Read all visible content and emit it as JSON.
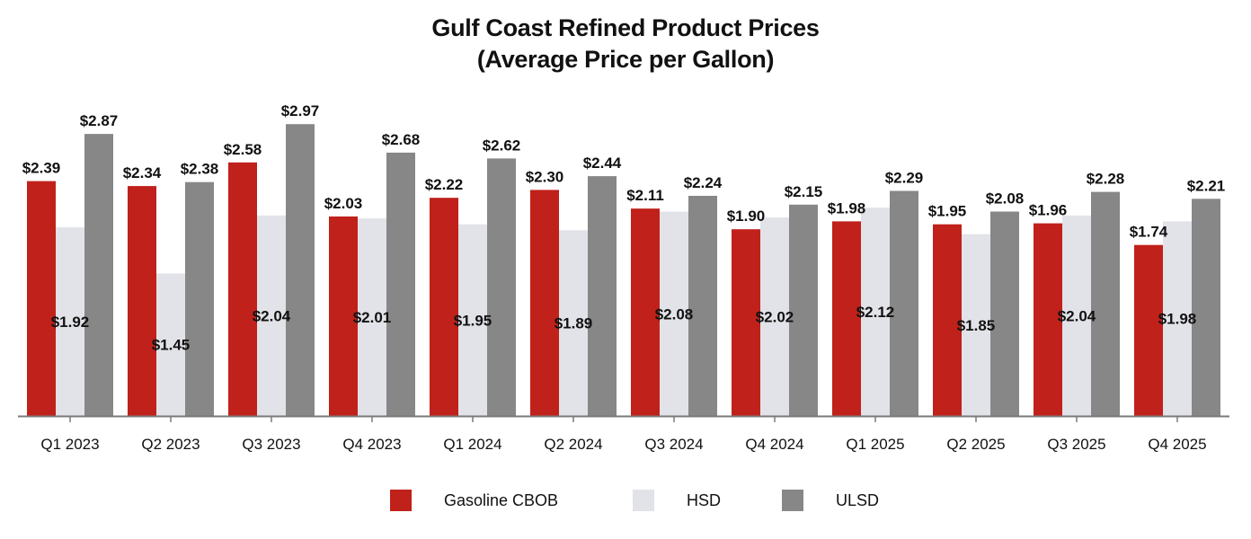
{
  "chart_data": {
    "type": "bar",
    "title": "Gulf Coast Refined Product Prices",
    "subtitle": "(Average Price per Gallon)",
    "xlabel": "",
    "ylabel": "",
    "ylim": [
      0,
      3.2
    ],
    "grid": false,
    "legend_position": "bottom-center",
    "categories": [
      "Q1 2023",
      "Q2 2023",
      "Q3 2023",
      "Q4 2023",
      "Q1 2024",
      "Q2 2024",
      "Q3 2024",
      "Q4 2024",
      "Q1 2025",
      "Q2 2025",
      "Q3 2025",
      "Q4 2025"
    ],
    "series": [
      {
        "name": "Gasoline CBOB",
        "color": "#C0211A",
        "label_position": "above",
        "values": [
          2.39,
          2.34,
          2.58,
          2.03,
          2.22,
          2.3,
          2.11,
          1.9,
          1.98,
          1.95,
          1.96,
          1.74
        ],
        "labels": [
          "$2.39",
          "$2.34",
          "$2.58",
          "$2.03",
          "$2.22",
          "$2.30",
          "$2.11",
          "$1.90",
          "$1.98",
          "$1.95",
          "$1.96",
          "$1.74"
        ]
      },
      {
        "name": "HSD",
        "color": "#E2E3E8",
        "label_position": "inside",
        "values": [
          1.92,
          1.45,
          2.04,
          2.01,
          1.95,
          1.89,
          2.08,
          2.02,
          2.12,
          1.85,
          2.04,
          1.98
        ],
        "labels": [
          "$1.92",
          "$1.45",
          "$2.04",
          "$2.01",
          "$1.95",
          "$1.89",
          "$2.08",
          "$2.02",
          "$2.12",
          "$1.85",
          "$2.04",
          "$1.98"
        ]
      },
      {
        "name": "ULSD",
        "color": "#878787",
        "label_position": "above",
        "values": [
          2.87,
          2.38,
          2.97,
          2.68,
          2.62,
          2.44,
          2.24,
          2.15,
          2.29,
          2.08,
          2.28,
          2.21
        ],
        "labels": [
          "$2.87",
          "$2.38",
          "$2.97",
          "$2.68",
          "$2.62",
          "$2.44",
          "$2.24",
          "$2.15",
          "$2.29",
          "$2.08",
          "$2.28",
          "$2.21"
        ]
      }
    ]
  }
}
